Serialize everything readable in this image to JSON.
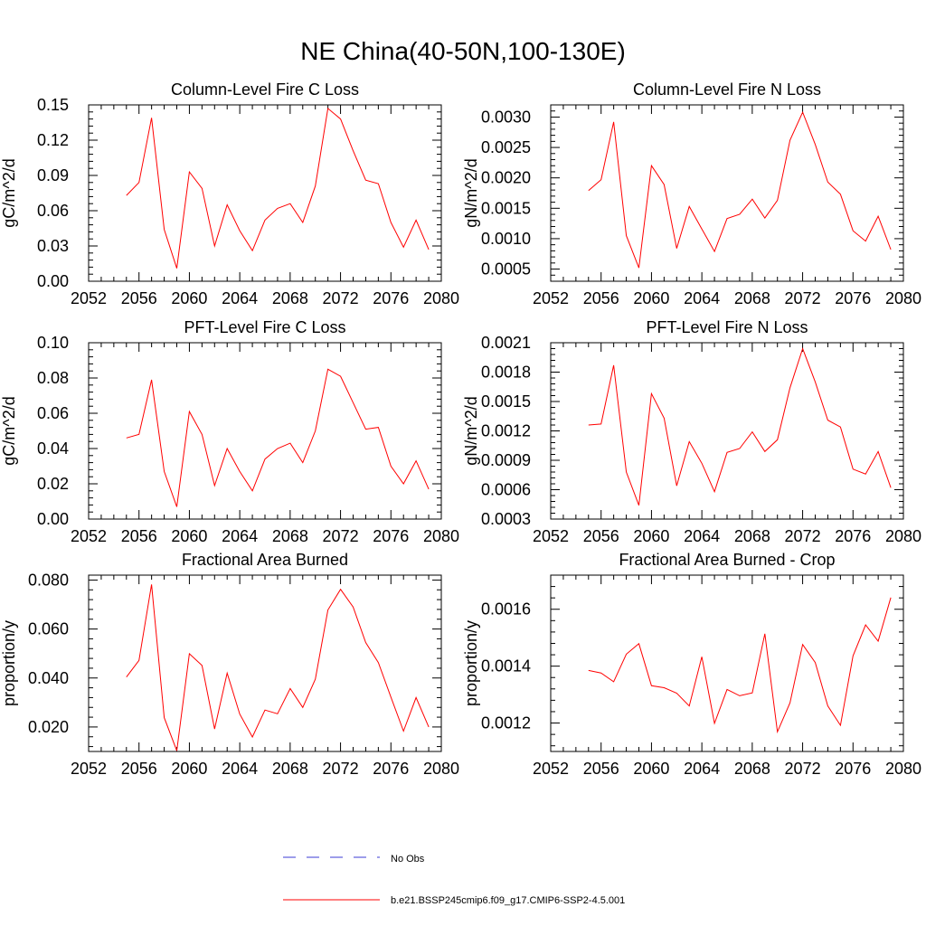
{
  "figure_title": "NE China(40-50N,100-130E)",
  "legend": {
    "obs_label": "No Obs",
    "model_label": "b.e21.BSSP245cmip6.f09_g17.CMIP6-SSP2-4.5.001",
    "obs_color": "#3b3bd6",
    "model_color": "#ff0000"
  },
  "chart_data": [
    {
      "type": "line",
      "title": "Column-Level Fire C Loss",
      "ylabel": "gC/m^2/d",
      "xlim": [
        2052,
        2080
      ],
      "ylim": [
        0,
        0.15
      ],
      "xticks": [
        "2052",
        "2056",
        "2060",
        "2064",
        "2068",
        "2072",
        "2076",
        "2080"
      ],
      "yticks": [
        "0.00",
        "0.03",
        "0.06",
        "0.09",
        "0.12",
        "0.15"
      ],
      "x": [
        2055,
        2056,
        2057,
        2058,
        2059,
        2060,
        2061,
        2062,
        2063,
        2064,
        2065,
        2066,
        2067,
        2068,
        2069,
        2070,
        2071,
        2072,
        2073,
        2074,
        2075,
        2076,
        2077,
        2078,
        2079
      ],
      "series": [
        {
          "values": [
            0.073,
            0.084,
            0.139,
            0.044,
            0.011,
            0.093,
            0.079,
            0.03,
            0.065,
            0.043,
            0.026,
            0.052,
            0.062,
            0.066,
            0.05,
            0.081,
            0.147,
            0.138,
            0.111,
            0.086,
            0.083,
            0.05,
            0.029,
            0.052,
            0.027
          ]
        }
      ]
    },
    {
      "type": "line",
      "title": "Column-Level Fire N Loss",
      "ylabel": "gN/m^2/d",
      "xlim": [
        2052,
        2080
      ],
      "ylim": [
        0.0003,
        0.0032
      ],
      "xticks": [
        "2052",
        "2056",
        "2060",
        "2064",
        "2068",
        "2072",
        "2076",
        "2080"
      ],
      "yticks": [
        "0.0005",
        "0.0010",
        "0.0015",
        "0.0020",
        "0.0025",
        "0.0030"
      ],
      "x": [
        2055,
        2056,
        2057,
        2058,
        2059,
        2060,
        2061,
        2062,
        2063,
        2064,
        2065,
        2066,
        2067,
        2068,
        2069,
        2070,
        2071,
        2072,
        2073,
        2074,
        2075,
        2076,
        2077,
        2078,
        2079
      ],
      "series": [
        {
          "values": [
            0.00179,
            0.00197,
            0.00292,
            0.00105,
            0.00052,
            0.0022,
            0.00189,
            0.00084,
            0.00153,
            0.00116,
            0.00079,
            0.00133,
            0.0014,
            0.00165,
            0.00134,
            0.00163,
            0.00262,
            0.00308,
            0.00255,
            0.00193,
            0.00173,
            0.00113,
            0.00096,
            0.00137,
            0.00082
          ]
        }
      ]
    },
    {
      "type": "line",
      "title": "PFT-Level Fire C Loss",
      "ylabel": "gC/m^2/d",
      "xlim": [
        2052,
        2080
      ],
      "ylim": [
        0,
        0.1
      ],
      "xticks": [
        "2052",
        "2056",
        "2060",
        "2064",
        "2068",
        "2072",
        "2076",
        "2080"
      ],
      "yticks": [
        "0.00",
        "0.02",
        "0.04",
        "0.06",
        "0.08",
        "0.10"
      ],
      "x": [
        2055,
        2056,
        2057,
        2058,
        2059,
        2060,
        2061,
        2062,
        2063,
        2064,
        2065,
        2066,
        2067,
        2068,
        2069,
        2070,
        2071,
        2072,
        2073,
        2074,
        2075,
        2076,
        2077,
        2078,
        2079
      ],
      "series": [
        {
          "values": [
            0.046,
            0.048,
            0.079,
            0.027,
            0.007,
            0.061,
            0.048,
            0.019,
            0.04,
            0.027,
            0.016,
            0.034,
            0.04,
            0.043,
            0.032,
            0.05,
            0.085,
            0.081,
            0.066,
            0.051,
            0.052,
            0.03,
            0.02,
            0.033,
            0.017
          ]
        }
      ]
    },
    {
      "type": "line",
      "title": "PFT-Level Fire N Loss",
      "ylabel": "gN/m^2/d",
      "xlim": [
        2052,
        2080
      ],
      "ylim": [
        0.0003,
        0.0021
      ],
      "xticks": [
        "2052",
        "2056",
        "2060",
        "2064",
        "2068",
        "2072",
        "2076",
        "2080"
      ],
      "yticks": [
        "0.0003",
        "0.0006",
        "0.0009",
        "0.0012",
        "0.0015",
        "0.0018",
        "0.0021"
      ],
      "x": [
        2055,
        2056,
        2057,
        2058,
        2059,
        2060,
        2061,
        2062,
        2063,
        2064,
        2065,
        2066,
        2067,
        2068,
        2069,
        2070,
        2071,
        2072,
        2073,
        2074,
        2075,
        2076,
        2077,
        2078,
        2079
      ],
      "series": [
        {
          "values": [
            0.00126,
            0.00127,
            0.00187,
            0.00078,
            0.00044,
            0.00158,
            0.00133,
            0.00064,
            0.00109,
            0.00087,
            0.00058,
            0.00098,
            0.00102,
            0.00119,
            0.00099,
            0.00111,
            0.00164,
            0.00204,
            0.0017,
            0.00131,
            0.00124,
            0.00081,
            0.00076,
            0.00099,
            0.00062
          ]
        }
      ]
    },
    {
      "type": "line",
      "title": "Fractional Area Burned",
      "ylabel": "proportion/y",
      "xlim": [
        2052,
        2080
      ],
      "ylim": [
        0.01,
        0.082
      ],
      "xticks": [
        "2052",
        "2056",
        "2060",
        "2064",
        "2068",
        "2072",
        "2076",
        "2080"
      ],
      "yticks": [
        "0.020",
        "0.040",
        "0.060",
        "0.080"
      ],
      "x": [
        2055,
        2056,
        2057,
        2058,
        2059,
        2060,
        2061,
        2062,
        2063,
        2064,
        2065,
        2066,
        2067,
        2068,
        2069,
        2070,
        2071,
        2072,
        2073,
        2074,
        2075,
        2076,
        2077,
        2078,
        2079
      ],
      "series": [
        {
          "values": [
            0.0404,
            0.0472,
            0.0782,
            0.0238,
            0.0103,
            0.0499,
            0.0451,
            0.0192,
            0.042,
            0.0253,
            0.0159,
            0.0269,
            0.0254,
            0.0357,
            0.028,
            0.0395,
            0.0678,
            0.0762,
            0.069,
            0.0545,
            0.0463,
            0.0322,
            0.0183,
            0.032,
            0.02
          ]
        }
      ]
    },
    {
      "type": "line",
      "title": "Fractional Area Burned - Crop",
      "ylabel": "proportion/y",
      "xlim": [
        2052,
        2080
      ],
      "ylim": [
        0.0011,
        0.00172
      ],
      "xticks": [
        "2052",
        "2056",
        "2060",
        "2064",
        "2068",
        "2072",
        "2076",
        "2080"
      ],
      "yticks": [
        "0.0012",
        "0.0014",
        "0.0016"
      ],
      "x": [
        2055,
        2056,
        2057,
        2058,
        2059,
        2060,
        2061,
        2062,
        2063,
        2064,
        2065,
        2066,
        2067,
        2068,
        2069,
        2070,
        2071,
        2072,
        2073,
        2074,
        2075,
        2076,
        2077,
        2078,
        2079
      ],
      "series": [
        {
          "values": [
            0.001385,
            0.001376,
            0.001345,
            0.001442,
            0.001479,
            0.001331,
            0.001324,
            0.001305,
            0.00126,
            0.001433,
            0.001199,
            0.001318,
            0.001296,
            0.001306,
            0.001514,
            0.001169,
            0.001271,
            0.001476,
            0.001413,
            0.00126,
            0.001192,
            0.001436,
            0.001545,
            0.001488,
            0.001641
          ]
        }
      ]
    }
  ]
}
